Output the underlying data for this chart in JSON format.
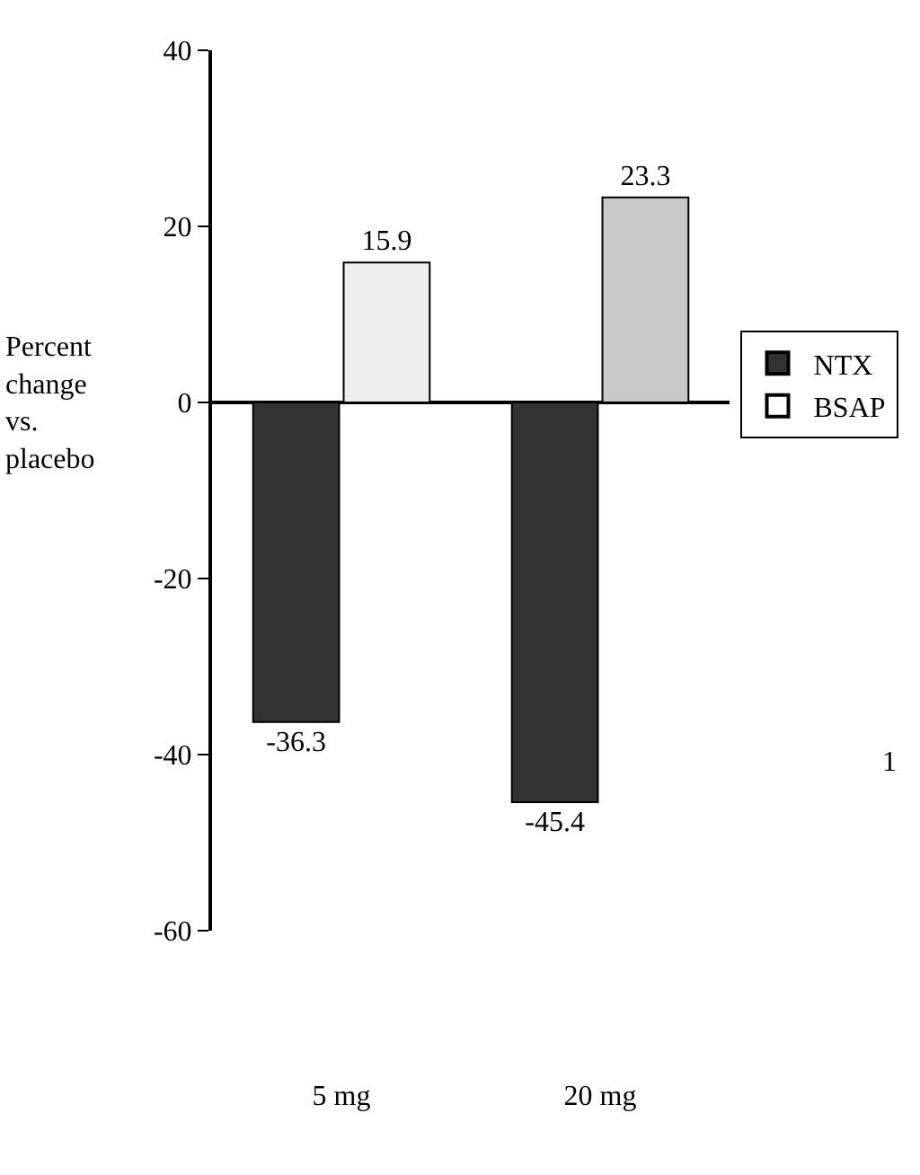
{
  "chart_data": {
    "type": "bar",
    "ylabel": "Percent change vs. placebo",
    "categories": [
      "5 mg",
      "20 mg"
    ],
    "series": [
      {
        "name": "NTX",
        "color": "#333333",
        "values": [
          -36.3,
          -45.4
        ]
      },
      {
        "name": "BSAP",
        "colors": [
          "#eeeeee",
          "#c8c8c8"
        ],
        "color": "#ffffff",
        "values": [
          15.9,
          23.3
        ]
      }
    ],
    "ylim": [
      -60,
      40
    ],
    "yticks": [
      -60,
      -40,
      -20,
      0,
      20,
      40
    ],
    "legend": "right",
    "data_labels": true,
    "annotations": [
      "1"
    ]
  }
}
